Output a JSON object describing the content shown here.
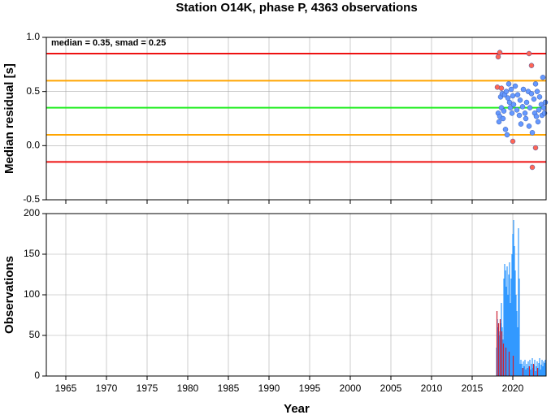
{
  "chart_data": [
    {
      "type": "scatter",
      "title": "Station O14K, phase P, 4363 observations",
      "ylabel": "Median residual [s]",
      "annotation": "median = 0.35, smad = 0.25",
      "xlim": [
        1962.6,
        2024.1
      ],
      "ylim": [
        -0.5,
        1.0
      ],
      "yticks": [
        {
          "value": 1.0,
          "label": "1.0"
        },
        0.5,
        {
          "value": 0.0,
          "label": "0.0"
        },
        -0.5
      ],
      "grid": true,
      "hlines": [
        {
          "value": 0.85,
          "color": "#ee1111"
        },
        {
          "value": 0.6,
          "color": "#ffa500"
        },
        {
          "value": 0.35,
          "color": "#22ee22"
        },
        {
          "value": 0.1,
          "color": "#ffa500"
        },
        {
          "value": -0.15,
          "color": "#ee1111"
        }
      ],
      "series": [
        {
          "color": "#6699ff",
          "x": [
            2018.2,
            2018.3,
            2018.4,
            2018.5,
            2018.6,
            2018.7,
            2018.8,
            2018.9,
            2019.0,
            2019.1,
            2019.2,
            2019.3,
            2019.4,
            2019.5,
            2019.6,
            2019.7,
            2019.8,
            2019.9,
            2020.0,
            2020.1,
            2020.3,
            2020.5,
            2020.6,
            2020.8,
            2020.9,
            2021.0,
            2021.2,
            2021.3,
            2021.5,
            2021.6,
            2021.7,
            2021.9,
            2022.0,
            2022.1,
            2022.3,
            2022.4,
            2022.6,
            2022.7,
            2022.8,
            2022.9,
            2023.0,
            2023.1,
            2023.2,
            2023.3,
            2023.5,
            2023.6,
            2023.7,
            2023.8,
            2023.9,
            2024.0
          ],
          "values": [
            0.3,
            0.22,
            0.27,
            0.45,
            0.35,
            0.48,
            0.25,
            0.32,
            0.47,
            0.15,
            0.5,
            0.1,
            0.44,
            0.57,
            0.4,
            0.35,
            0.52,
            0.3,
            0.46,
            0.38,
            0.55,
            0.33,
            0.47,
            0.28,
            0.42,
            0.2,
            0.36,
            0.52,
            0.3,
            0.25,
            0.4,
            0.5,
            0.18,
            0.35,
            0.48,
            0.12,
            0.43,
            0.3,
            0.57,
            0.27,
            0.5,
            0.22,
            0.33,
            0.45,
            0.38,
            0.28,
            0.63,
            0.35,
            0.3,
            0.4
          ]
        },
        {
          "color": "#ff6655",
          "x": [
            2018.1,
            2018.2,
            2018.4,
            2018.6,
            2020.0,
            2022.0,
            2022.3,
            2022.4,
            2022.8
          ],
          "values": [
            0.54,
            0.82,
            0.86,
            0.53,
            0.04,
            0.85,
            0.74,
            -0.2,
            -0.02
          ]
        }
      ]
    },
    {
      "type": "bar",
      "ylabel": "Observations",
      "xlabel": "Year",
      "xlim": [
        1962.6,
        2024.1
      ],
      "ylim": [
        0,
        200
      ],
      "xticks": [
        1965,
        1970,
        1975,
        1980,
        1985,
        1990,
        1995,
        2000,
        2005,
        2010,
        2015,
        2020
      ],
      "yticks": [
        0,
        50,
        100,
        150,
        200
      ],
      "grid": true,
      "series": [
        {
          "color": "#3399ff",
          "x": [
            2018.0,
            2018.1,
            2018.2,
            2018.3,
            2018.4,
            2018.5,
            2018.6,
            2018.7,
            2018.8,
            2018.9,
            2019.0,
            2019.1,
            2019.2,
            2019.3,
            2019.4,
            2019.5,
            2019.6,
            2019.7,
            2019.8,
            2019.9,
            2020.0,
            2020.1,
            2020.2,
            2020.3,
            2020.4,
            2020.5,
            2020.6,
            2020.7,
            2020.8,
            2020.9,
            2021.0,
            2021.1,
            2021.2,
            2021.3,
            2021.4,
            2021.5,
            2021.6,
            2021.7,
            2021.8,
            2021.9,
            2022.0,
            2022.1,
            2022.2,
            2022.3,
            2022.4,
            2022.5,
            2022.6,
            2022.7,
            2022.8,
            2022.9,
            2023.0,
            2023.1,
            2023.2,
            2023.3,
            2023.4,
            2023.5,
            2023.6,
            2023.7,
            2023.8,
            2023.9,
            2024.0
          ],
          "values": [
            35,
            70,
            60,
            55,
            50,
            65,
            90,
            60,
            45,
            120,
            138,
            130,
            110,
            135,
            100,
            125,
            140,
            90,
            120,
            150,
            175,
            192,
            160,
            130,
            100,
            80,
            60,
            182,
            120,
            15,
            20,
            15,
            10,
            18,
            12,
            20,
            8,
            15,
            10,
            18,
            12,
            20,
            8,
            15,
            22,
            10,
            14,
            20,
            6,
            12,
            18,
            10,
            16,
            22,
            8,
            14,
            20,
            12,
            18,
            16,
            20
          ]
        },
        {
          "color": "#cc2233",
          "x": [
            2018.05,
            2018.25,
            2018.45,
            2018.65,
            2018.85,
            2019.15,
            2019.55,
            2020.05,
            2021.25,
            2022.05,
            2022.55,
            2023.05
          ],
          "values": [
            80,
            65,
            70,
            55,
            40,
            35,
            30,
            25,
            10,
            12,
            15,
            10
          ]
        }
      ]
    }
  ]
}
